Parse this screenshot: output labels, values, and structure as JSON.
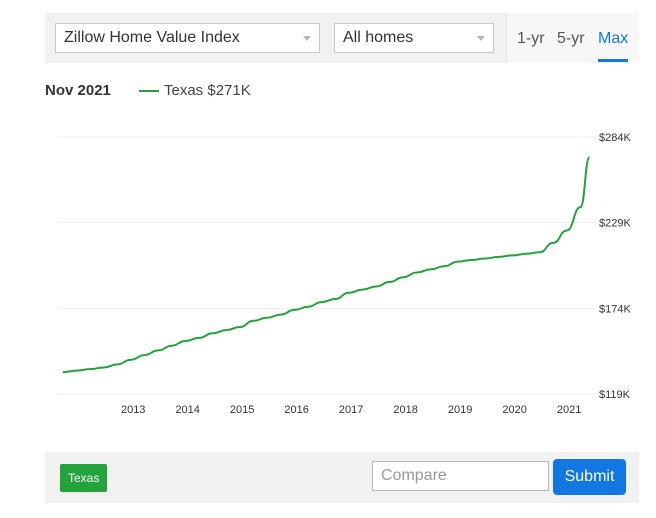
{
  "toolbar": {
    "index_select": "Zillow Home Value Index",
    "homes_select": "All homes",
    "ranges": [
      "1-yr",
      "5-yr",
      "Max"
    ],
    "active_range": "Max"
  },
  "legend": {
    "date": "Nov 2021",
    "series_label": "Texas $271K"
  },
  "chart_data": {
    "type": "line",
    "title": "",
    "xlabel": "",
    "ylabel": "",
    "x_ticks": [
      "2013",
      "2014",
      "2015",
      "2016",
      "2017",
      "2018",
      "2019",
      "2020",
      "2021"
    ],
    "y_ticks": [
      "$119K",
      "$174K",
      "$229K",
      "$284K"
    ],
    "ylim": [
      119,
      284
    ],
    "y_unit": "$K",
    "grid": true,
    "color": "#23a33b",
    "series": [
      {
        "name": "Texas",
        "x": [
          "2012-03",
          "2012-06",
          "2012-09",
          "2012-12",
          "2013-03",
          "2013-06",
          "2013-09",
          "2013-12",
          "2014-03",
          "2014-06",
          "2014-09",
          "2014-12",
          "2015-03",
          "2015-06",
          "2015-09",
          "2015-12",
          "2016-03",
          "2016-06",
          "2016-09",
          "2016-12",
          "2017-03",
          "2017-06",
          "2017-09",
          "2017-12",
          "2018-03",
          "2018-06",
          "2018-09",
          "2018-12",
          "2019-03",
          "2019-06",
          "2019-09",
          "2019-12",
          "2020-03",
          "2020-06",
          "2020-09",
          "2020-12",
          "2021-03",
          "2021-06",
          "2021-09",
          "2021-11"
        ],
        "values": [
          133,
          134,
          135,
          136,
          138,
          141,
          144,
          147,
          150,
          153,
          155,
          158,
          160,
          162,
          166,
          168,
          170,
          173,
          175,
          178,
          180,
          184,
          186,
          188,
          191,
          194,
          197,
          199,
          201,
          204,
          205,
          206,
          207,
          208,
          209,
          210,
          216,
          224,
          239,
          271
        ]
      }
    ]
  },
  "footer": {
    "chip_label": "Texas",
    "compare_placeholder": "Compare",
    "submit_label": "Submit"
  }
}
